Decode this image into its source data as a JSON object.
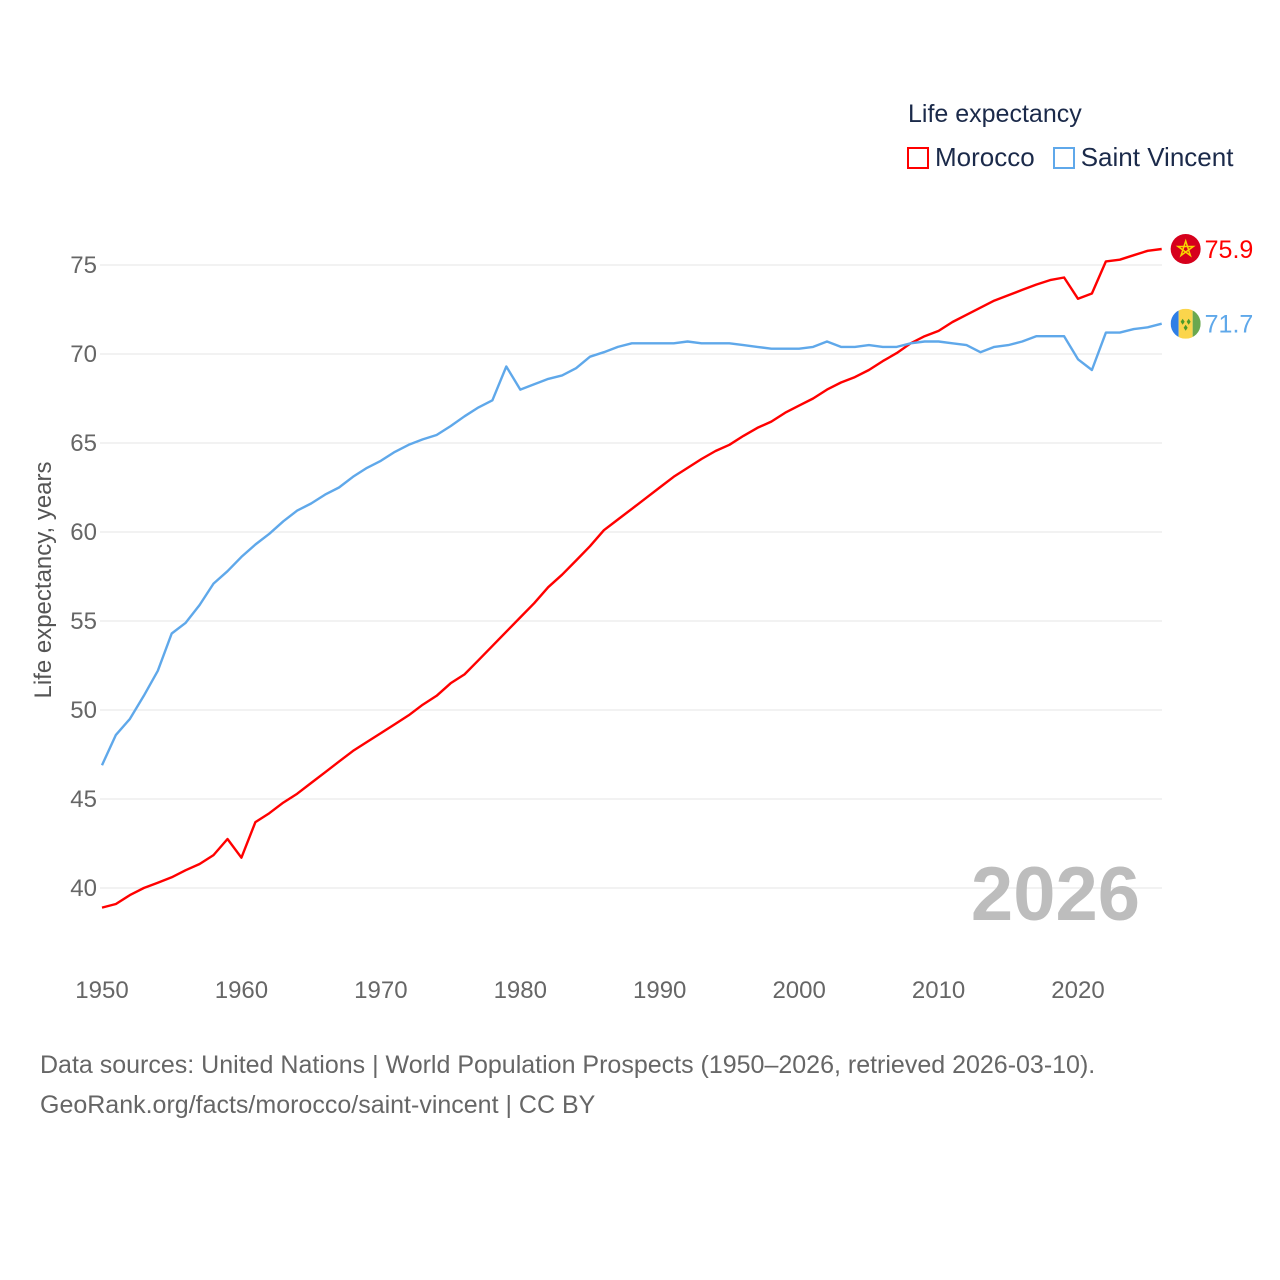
{
  "chart_data": {
    "type": "line",
    "title": "Life expectancy",
    "xlabel": "",
    "ylabel": "Life expectancy, years",
    "xlim": [
      1950,
      2026
    ],
    "ylim": [
      37,
      78
    ],
    "xticks": [
      1950,
      1960,
      1970,
      1980,
      1990,
      2000,
      2010,
      2020
    ],
    "yticks": [
      40,
      45,
      50,
      55,
      60,
      65,
      70,
      75
    ],
    "grid": true,
    "legend_placement": "top-right",
    "watermark_year": "2026",
    "x": [
      1950,
      1951,
      1952,
      1953,
      1954,
      1955,
      1956,
      1957,
      1958,
      1959,
      1960,
      1961,
      1962,
      1963,
      1964,
      1965,
      1966,
      1967,
      1968,
      1969,
      1970,
      1971,
      1972,
      1973,
      1974,
      1975,
      1976,
      1977,
      1978,
      1979,
      1980,
      1981,
      1982,
      1983,
      1984,
      1985,
      1986,
      1987,
      1988,
      1989,
      1990,
      1991,
      1992,
      1993,
      1994,
      1995,
      1996,
      1997,
      1998,
      1999,
      2000,
      2001,
      2002,
      2003,
      2004,
      2005,
      2006,
      2007,
      2008,
      2009,
      2010,
      2011,
      2012,
      2013,
      2014,
      2015,
      2016,
      2017,
      2018,
      2019,
      2020,
      2021,
      2022,
      2023,
      2024,
      2025,
      2026
    ],
    "series": [
      {
        "name": "Morocco",
        "color": "#ff0000",
        "end_label": "75.9",
        "flag": "morocco-flag",
        "values": [
          38.9,
          39.1,
          39.6,
          40.0,
          40.3,
          40.6,
          41.0,
          41.35,
          41.85,
          42.75,
          41.7,
          43.7,
          44.2,
          44.8,
          45.3,
          45.9,
          46.5,
          47.1,
          47.7,
          48.2,
          48.7,
          49.2,
          49.7,
          50.3,
          50.8,
          51.5,
          52.0,
          52.8,
          53.6,
          54.4,
          55.2,
          56.0,
          56.9,
          57.6,
          58.4,
          59.2,
          60.1,
          60.7,
          61.3,
          61.9,
          62.5,
          63.1,
          63.6,
          64.1,
          64.55,
          64.9,
          65.4,
          65.85,
          66.2,
          66.7,
          67.1,
          67.5,
          68.0,
          68.4,
          68.7,
          69.1,
          69.6,
          70.05,
          70.6,
          71.0,
          71.3,
          71.8,
          72.2,
          72.6,
          73.0,
          73.3,
          73.6,
          73.9,
          74.15,
          74.3,
          73.1,
          73.4,
          75.2,
          75.3,
          75.55,
          75.8,
          75.9
        ]
      },
      {
        "name": "Saint Vincent",
        "color": "#5fa8ea",
        "end_label": "71.7",
        "flag": "saint-vincent-flag",
        "values": [
          46.9,
          48.6,
          49.5,
          50.8,
          52.2,
          54.3,
          54.9,
          55.9,
          57.1,
          57.8,
          58.6,
          59.3,
          59.9,
          60.6,
          61.2,
          61.6,
          62.1,
          62.5,
          63.1,
          63.6,
          64.0,
          64.5,
          64.9,
          65.2,
          65.45,
          65.95,
          66.5,
          67.0,
          67.4,
          69.3,
          68.0,
          68.3,
          68.6,
          68.8,
          69.2,
          69.85,
          70.1,
          70.4,
          70.6,
          70.6,
          70.6,
          70.6,
          70.7,
          70.6,
          70.6,
          70.6,
          70.5,
          70.4,
          70.3,
          70.3,
          70.3,
          70.4,
          70.7,
          70.4,
          70.4,
          70.5,
          70.4,
          70.4,
          70.6,
          70.7,
          70.7,
          70.6,
          70.5,
          70.1,
          70.4,
          70.5,
          70.7,
          71.0,
          71.0,
          71.0,
          69.7,
          69.1,
          71.2,
          71.2,
          71.4,
          71.5,
          71.7
        ]
      }
    ]
  },
  "footer": {
    "line1": "Data sources: United Nations | World Population Prospects (1950–2026, retrieved 2026-03-10).",
    "line2": "GeoRank.org/facts/morocco/saint-vincent | CC BY"
  }
}
